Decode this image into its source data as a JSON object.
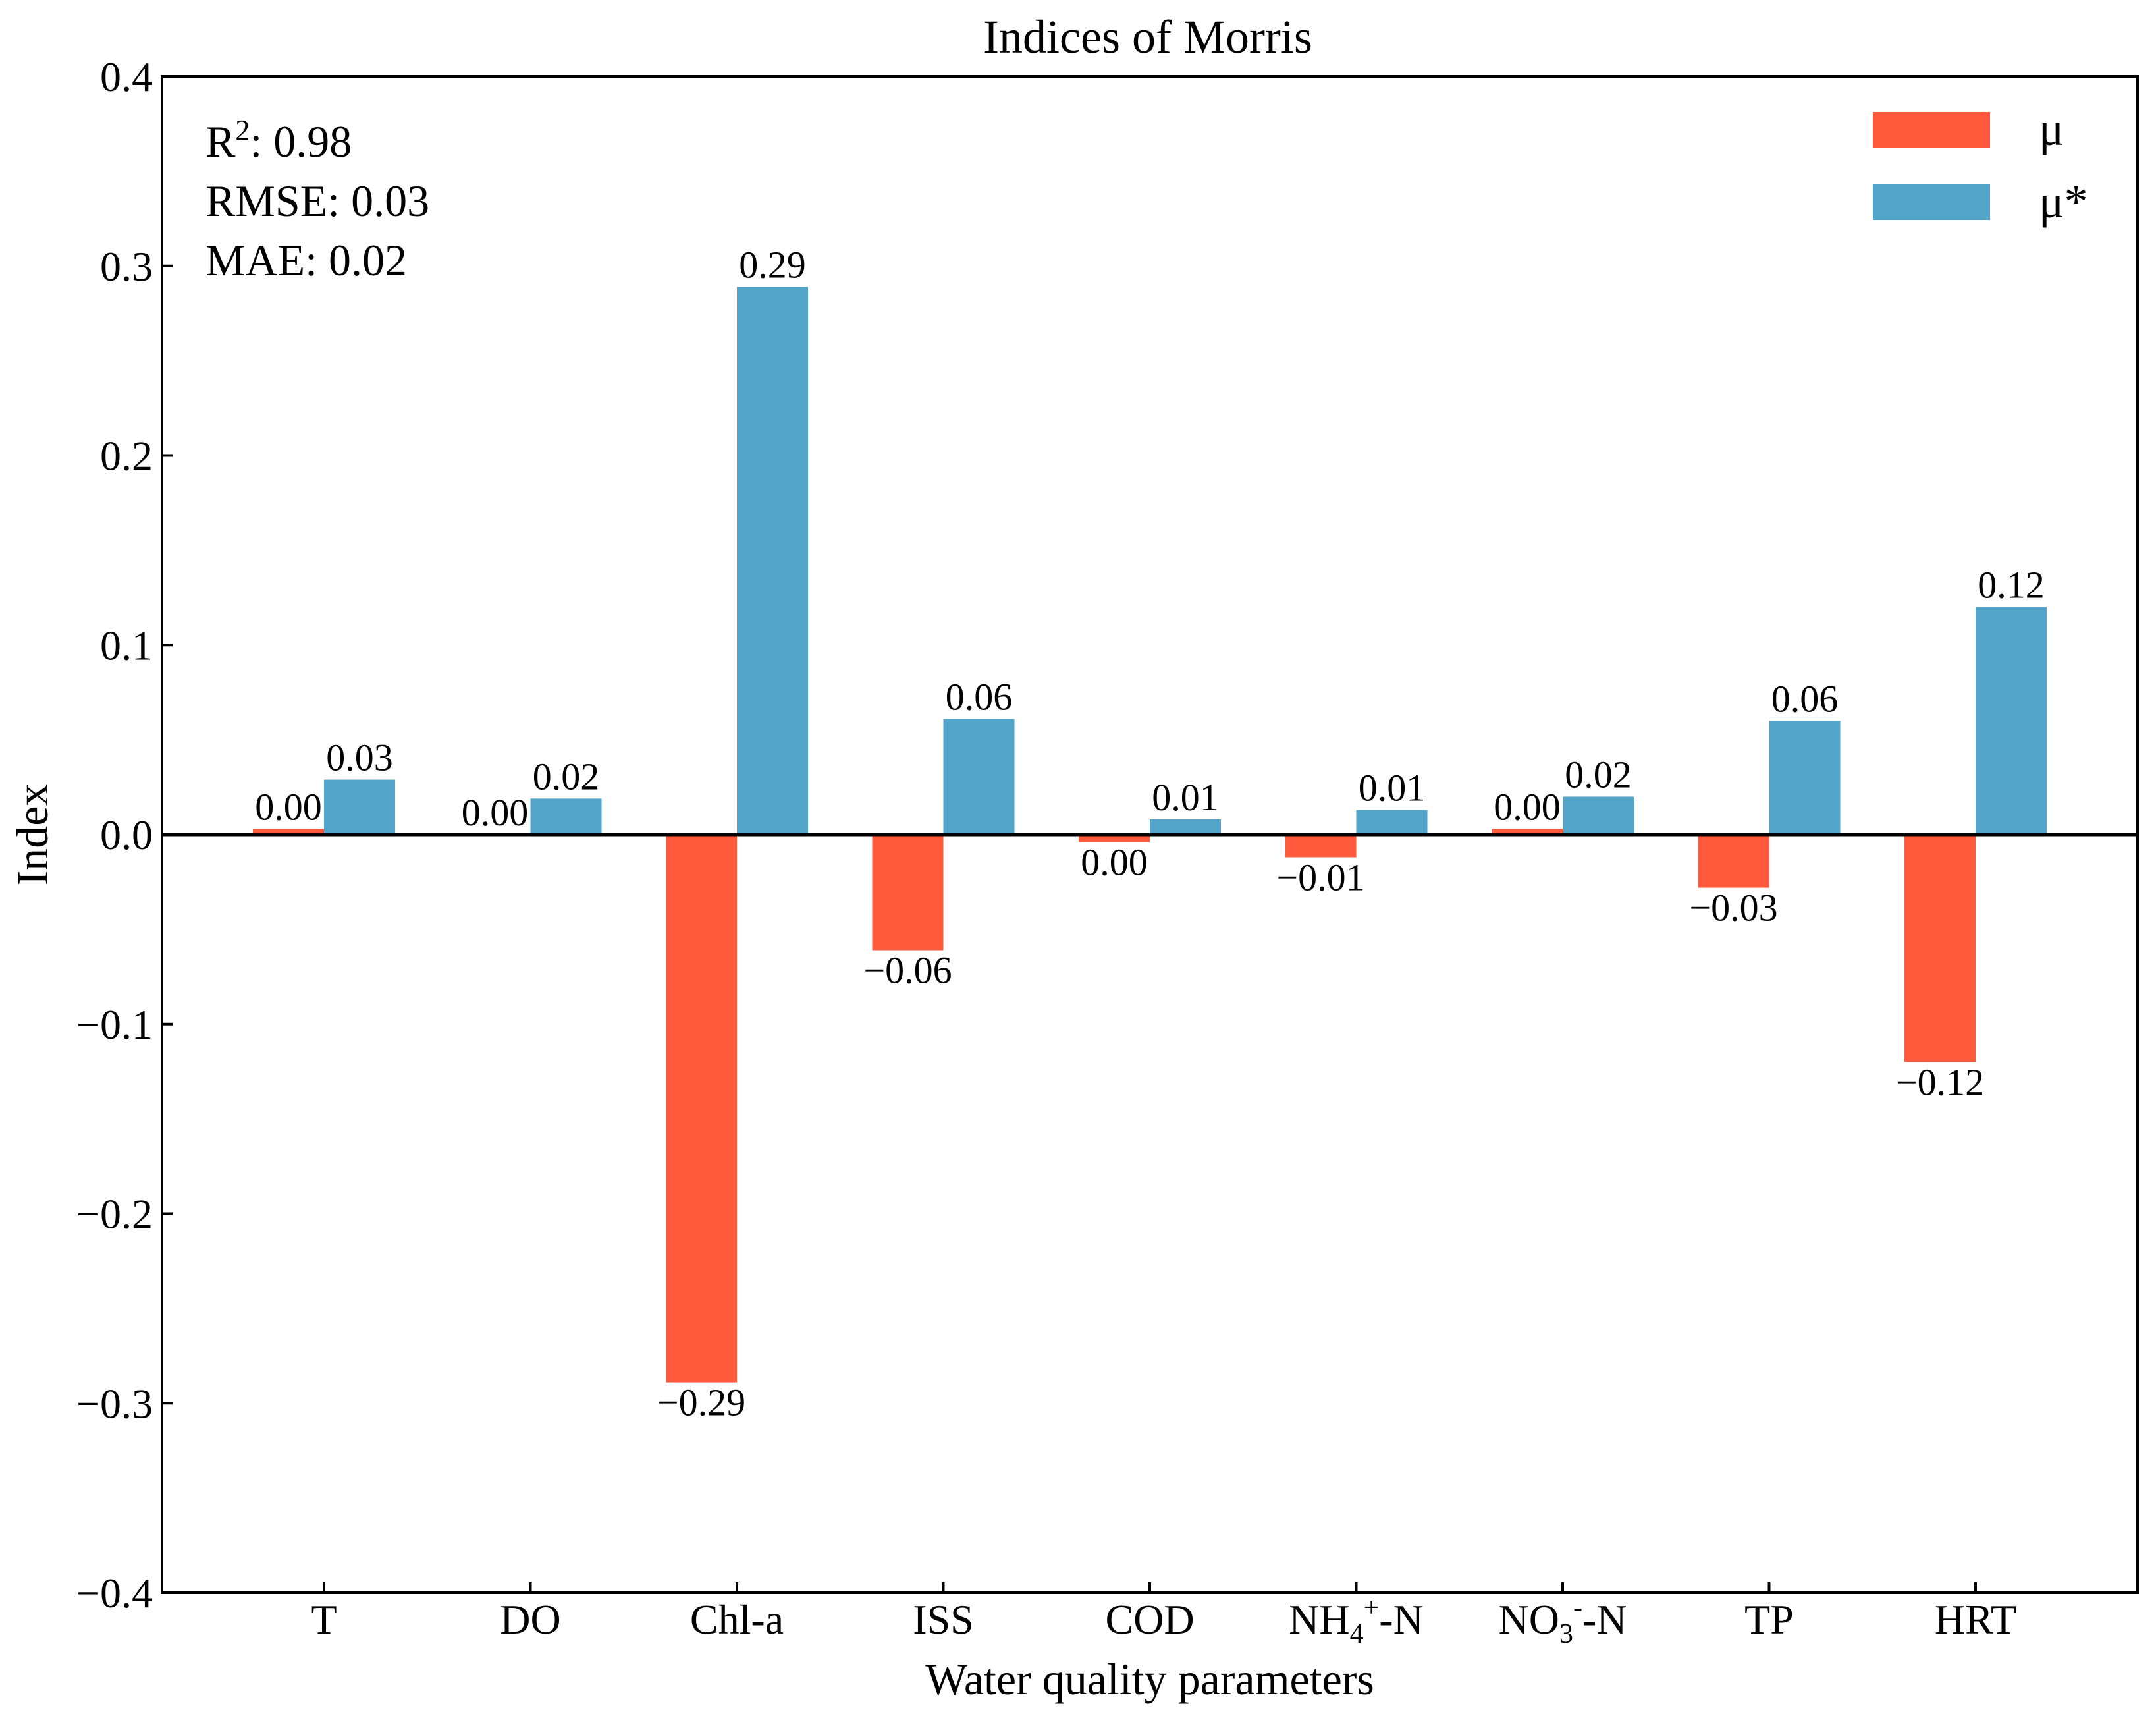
{
  "chart_data": {
    "type": "bar",
    "title": "Indices of Morris",
    "xlabel": "Water quality parameters",
    "ylabel": "Index",
    "ylim": [
      -0.4,
      0.4
    ],
    "yticks": [
      -0.4,
      -0.3,
      -0.2,
      -0.1,
      0.0,
      0.1,
      0.2,
      0.3,
      0.4
    ],
    "ytick_labels": [
      "−0.4",
      "−0.3",
      "−0.2",
      "−0.1",
      "0.0",
      "0.1",
      "0.2",
      "0.3",
      "0.4"
    ],
    "categories": [
      {
        "base": "T",
        "sub": "",
        "sup": "",
        "suffix": ""
      },
      {
        "base": "DO",
        "sub": "",
        "sup": "",
        "suffix": ""
      },
      {
        "base": "Chl-a",
        "sub": "",
        "sup": "",
        "suffix": ""
      },
      {
        "base": "ISS",
        "sub": "",
        "sup": "",
        "suffix": ""
      },
      {
        "base": "COD",
        "sub": "",
        "sup": "",
        "suffix": ""
      },
      {
        "base": "NH",
        "sub": "4",
        "sup": "+",
        "suffix": "-N"
      },
      {
        "base": "NO",
        "sub": "3",
        "sup": "-",
        "suffix": "-N"
      },
      {
        "base": "TP",
        "sub": "",
        "sup": "",
        "suffix": ""
      },
      {
        "base": "HRT",
        "sub": "",
        "sup": "",
        "suffix": ""
      }
    ],
    "series": [
      {
        "name": "μ",
        "color": "#FF5A3C",
        "values": [
          0.003,
          0.0,
          -0.289,
          -0.061,
          -0.004,
          -0.012,
          0.003,
          -0.028,
          -0.12
        ],
        "labels": [
          "0.00",
          "0.00",
          "−0.29",
          "−0.06",
          "0.00",
          "−0.01",
          "0.00",
          "−0.03",
          "−0.12"
        ]
      },
      {
        "name": "μ*",
        "color": "#52A5C9",
        "values": [
          0.029,
          0.019,
          0.289,
          0.061,
          0.008,
          0.013,
          0.02,
          0.06,
          0.12
        ],
        "labels": [
          "0.03",
          "0.02",
          "0.29",
          "0.06",
          "0.01",
          "0.01",
          "0.02",
          "0.06",
          "0.12"
        ]
      }
    ],
    "legend_position": "top-right",
    "annotations": {
      "r2_label": "R",
      "r2_sup": "2",
      "r2_value": ": 0.98",
      "rmse": "RMSE: 0.03",
      "mae": "MAE: 0.02"
    }
  }
}
